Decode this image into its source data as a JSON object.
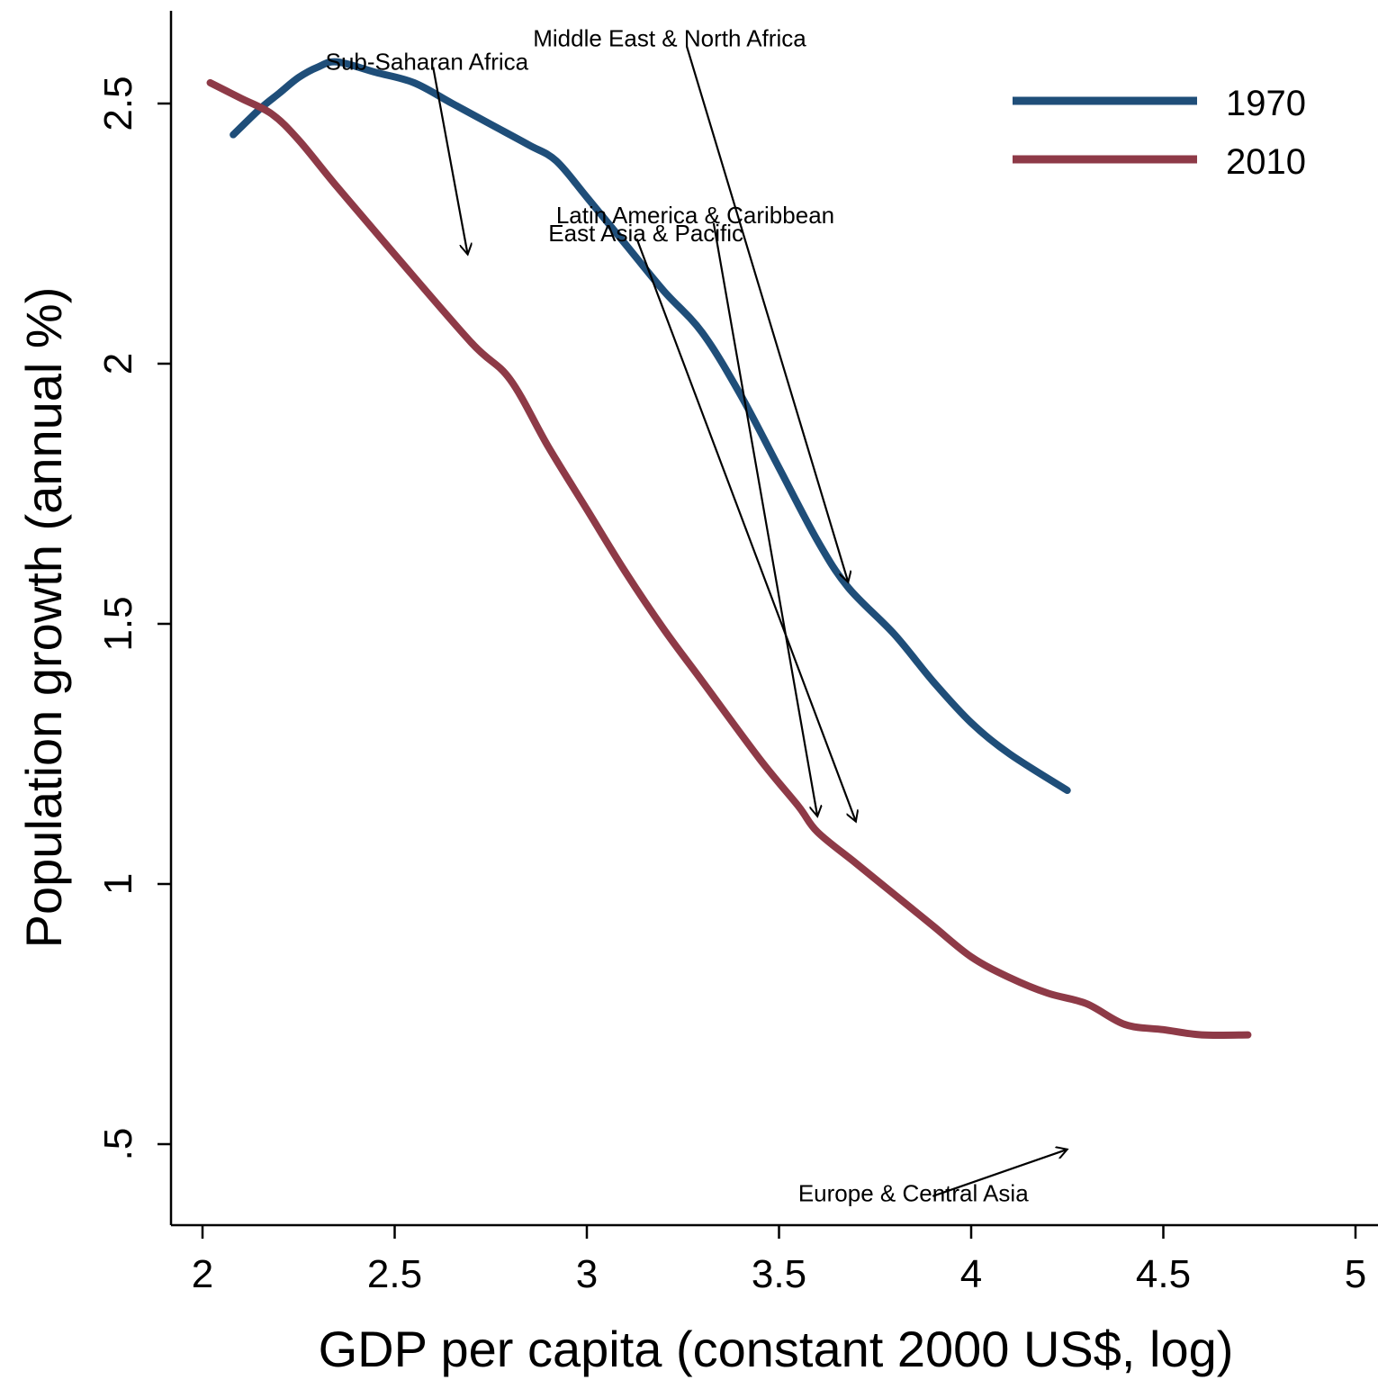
{
  "chart_data": {
    "type": "line",
    "title": "",
    "xlabel": "GDP per capita (constant 2000 US$, log)",
    "ylabel": "Population growth (annual %)",
    "xlim": [
      1.9,
      5.05
    ],
    "ylim": [
      0.35,
      2.68
    ],
    "x_ticks": [
      2,
      2.5,
      3,
      3.5,
      4,
      4.5,
      5
    ],
    "x_tick_labels": [
      "2",
      "2.5",
      "3",
      "3.5",
      "4",
      "4.5",
      "5"
    ],
    "y_ticks": [
      0.5,
      1,
      1.5,
      2,
      2.5
    ],
    "y_tick_labels": [
      ".5",
      "1",
      "1.5",
      "2",
      "2.5"
    ],
    "grid": false,
    "legend_position": "top-right",
    "colors": {
      "1970": "#1f4e79",
      "2010": "#8e3a47"
    },
    "series": [
      {
        "name": "1970",
        "color": "#1f4e79",
        "x": [
          2.08,
          2.15,
          2.2,
          2.25,
          2.3,
          2.35,
          2.45,
          2.55,
          2.65,
          2.75,
          2.85,
          2.92,
          3.0,
          3.1,
          3.2,
          3.3,
          3.4,
          3.5,
          3.6,
          3.68,
          3.8,
          3.9,
          4.0,
          4.1,
          4.25
        ],
        "y": [
          2.44,
          2.49,
          2.52,
          2.55,
          2.57,
          2.58,
          2.56,
          2.54,
          2.5,
          2.46,
          2.42,
          2.39,
          2.32,
          2.23,
          2.14,
          2.06,
          1.94,
          1.8,
          1.66,
          1.57,
          1.48,
          1.39,
          1.31,
          1.25,
          1.18
        ]
      },
      {
        "name": "2010",
        "color": "#8e3a47",
        "x": [
          2.02,
          2.1,
          2.18,
          2.25,
          2.35,
          2.5,
          2.7,
          2.8,
          2.9,
          3.0,
          3.1,
          3.2,
          3.3,
          3.45,
          3.55,
          3.6,
          3.7,
          3.8,
          3.9,
          4.0,
          4.1,
          4.2,
          4.3,
          4.4,
          4.5,
          4.6,
          4.72
        ],
        "y": [
          2.54,
          2.51,
          2.48,
          2.43,
          2.34,
          2.21,
          2.04,
          1.97,
          1.84,
          1.72,
          1.6,
          1.49,
          1.39,
          1.24,
          1.15,
          1.1,
          1.04,
          0.98,
          0.92,
          0.86,
          0.82,
          0.79,
          0.77,
          0.73,
          0.72,
          0.71,
          0.71
        ]
      }
    ],
    "annotations": [
      {
        "text": "Sub-Saharan Africa",
        "x": 2.32,
        "y": 2.565,
        "arrow_from": [
          2.6,
          2.57
        ],
        "arrow_to": [
          2.69,
          2.21
        ]
      },
      {
        "text": "Middle East & North Africa",
        "x": 2.86,
        "y": 2.61,
        "arrow_from": [
          3.26,
          2.61
        ],
        "arrow_to": [
          3.68,
          1.58
        ]
      },
      {
        "text": "Latin America & Caribbean",
        "x": 2.92,
        "y": 2.27,
        "arrow_from": [
          3.33,
          2.27
        ],
        "arrow_to": [
          3.6,
          1.13
        ]
      },
      {
        "text": "East Asia & Pacific",
        "x": 2.9,
        "y": 2.235,
        "arrow_from": [
          3.13,
          2.24
        ],
        "arrow_to": [
          3.7,
          1.12
        ]
      },
      {
        "text": "Europe & Central Asia",
        "x": 3.55,
        "y": 0.39,
        "arrow_from": [
          3.9,
          0.4
        ],
        "arrow_to": [
          4.25,
          0.49
        ]
      }
    ]
  }
}
